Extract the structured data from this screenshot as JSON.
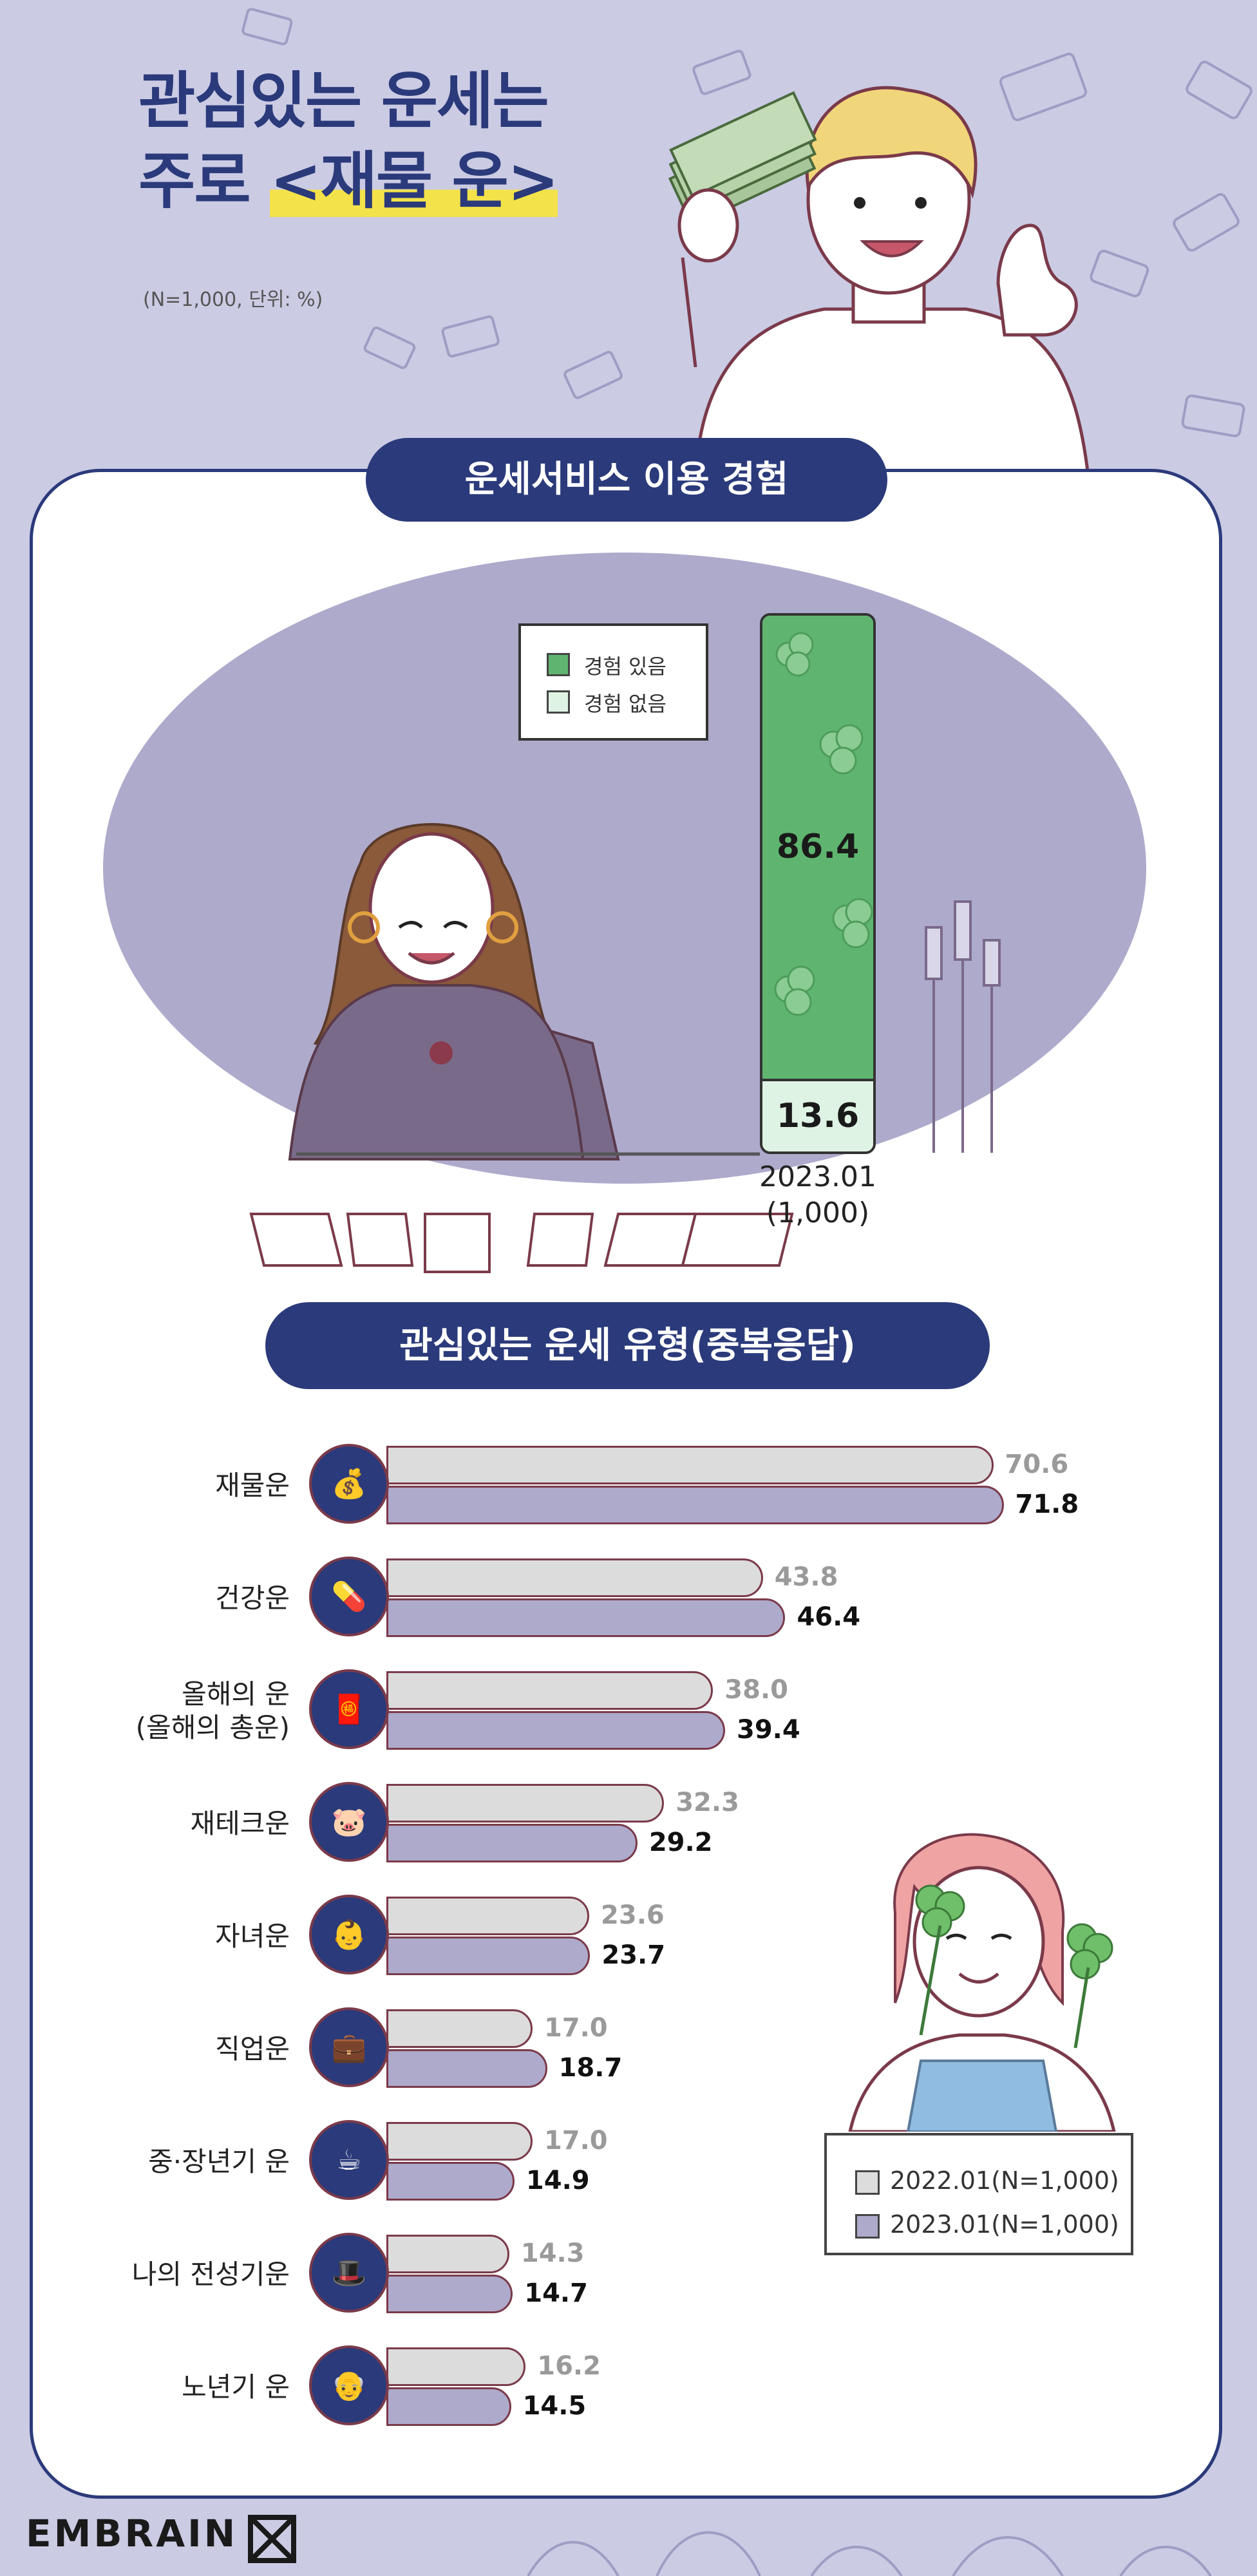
{
  "header": {
    "title_line1": "관심있는 운세는",
    "title_line2_prefix": "주로 ",
    "title_line2_highlight": "<재물 운>",
    "note": "(N=1,000, 단위: %)"
  },
  "section1": {
    "title": "운세서비스 이용 경험",
    "legend": [
      {
        "label": "경험 있음",
        "color": "#5fb56f"
      },
      {
        "label": "경험 없음",
        "color": "#dff3e4"
      }
    ],
    "bar_label_line1": "2023.01",
    "bar_label_line2": "(1,000)"
  },
  "section2": {
    "title": "관심있는 운세 유형(중복응답)",
    "legend": [
      {
        "label": "2022.01(N=1,000)",
        "color": "#dcdcdc"
      },
      {
        "label": "2023.01(N=1,000)",
        "color": "#aeaacb"
      }
    ]
  },
  "chart_data": [
    {
      "type": "bar",
      "stacked": true,
      "categories": [
        "2023.01 (1,000)"
      ],
      "series": [
        {
          "name": "경험 있음",
          "values": [
            86.4
          ]
        },
        {
          "name": "경험 없음",
          "values": [
            13.6
          ]
        }
      ],
      "ylim": [
        0,
        100
      ]
    },
    {
      "type": "bar",
      "orientation": "horizontal",
      "categories": [
        "재물운",
        "건강운",
        "올해의 운\n(올해의 총운)",
        "재테크운",
        "자녀운",
        "직업운",
        "중·장년기 운",
        "나의 전성기운",
        "노년기 운"
      ],
      "series": [
        {
          "name": "2022.01(N=1,000)",
          "values": [
            70.6,
            43.8,
            38.0,
            32.3,
            23.6,
            17.0,
            17.0,
            14.3,
            16.2
          ]
        },
        {
          "name": "2023.01(N=1,000)",
          "values": [
            71.8,
            46.4,
            39.4,
            29.2,
            23.7,
            18.7,
            14.9,
            14.7,
            14.5
          ]
        }
      ],
      "xlim": [
        0,
        100
      ],
      "value_labels": {
        "y2022": [
          "70.6",
          "43.8",
          "38.0",
          "32.3",
          "23.6",
          "17.0",
          "17.0",
          "14.3",
          "16.2"
        ],
        "y2023": [
          "71.8",
          "46.4",
          "39.4",
          "29.2",
          "23.7",
          "18.7",
          "14.9",
          "14.7",
          "14.5"
        ]
      }
    }
  ],
  "footer": {
    "brand": "EMBRAIN"
  }
}
